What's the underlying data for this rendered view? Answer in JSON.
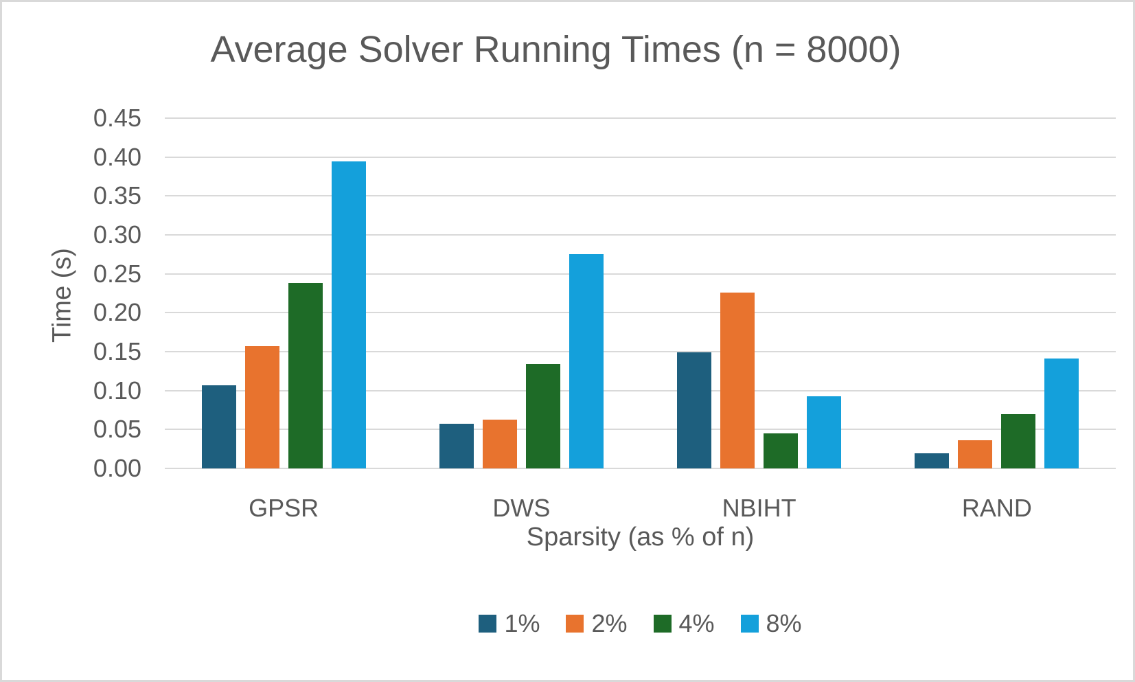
{
  "title": "Average Solver Running Times (n = 8000)",
  "colors": {
    "text": "#595959",
    "gridline": "#d9d9d9",
    "background": "#ffffff",
    "border": "#d9d9d9"
  },
  "chart_data": {
    "type": "bar",
    "title": "Average Solver Running Times (n = 8000)",
    "xlabel": "Sparsity (as % of n)",
    "ylabel": "Time (s)",
    "categories": [
      "GPSR",
      "DWS",
      "NBIHT",
      "RAND"
    ],
    "series": [
      {
        "name": "1%",
        "color": "#1E5F7E",
        "values": [
          0.107,
          0.057,
          0.149,
          0.019
        ]
      },
      {
        "name": "2%",
        "color": "#E8732E",
        "values": [
          0.157,
          0.063,
          0.226,
          0.036
        ]
      },
      {
        "name": "4%",
        "color": "#1E6B27",
        "values": [
          0.238,
          0.134,
          0.045,
          0.07
        ]
      },
      {
        "name": "8%",
        "color": "#14A0DB",
        "values": [
          0.394,
          0.275,
          0.093,
          0.141
        ]
      }
    ],
    "ylim": [
      0,
      0.45
    ],
    "ytick_step": 0.05,
    "ytick_labels": [
      "0.00",
      "0.05",
      "0.10",
      "0.15",
      "0.20",
      "0.25",
      "0.30",
      "0.35",
      "0.40",
      "0.45"
    ],
    "grid": true,
    "legend_position": "bottom"
  }
}
